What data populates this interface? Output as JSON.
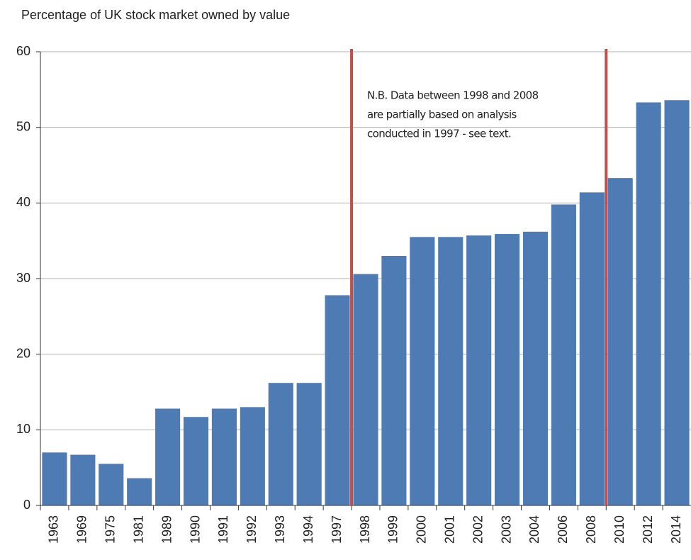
{
  "chart_data": {
    "type": "bar",
    "title": "Percentage of UK stock market owned by value",
    "categories": [
      "1963",
      "1969",
      "1975",
      "1981",
      "1989",
      "1990",
      "1991",
      "1992",
      "1993",
      "1994",
      "1997",
      "1998",
      "1999",
      "2000",
      "2001",
      "2002",
      "2003",
      "2004",
      "2006",
      "2008",
      "2010",
      "2012",
      "2014"
    ],
    "values": [
      7.0,
      6.7,
      5.5,
      3.6,
      12.8,
      11.7,
      12.8,
      13.0,
      16.2,
      16.2,
      27.8,
      30.6,
      33.0,
      35.5,
      35.5,
      35.7,
      35.9,
      36.2,
      39.8,
      41.4,
      43.3,
      53.3,
      53.6
    ],
    "color": "#4f7bb5",
    "ylim": [
      0,
      60
    ],
    "yticks": [
      0,
      10,
      20,
      30,
      40,
      50,
      60
    ],
    "grid": true,
    "dividers_after": [
      "1997",
      "2008"
    ],
    "divider_color": "#c0504d",
    "annotation": [
      "N.B. Data between 1998 and 2008",
      "are partially based on analysis",
      "conducted in 1997 - see text."
    ]
  }
}
